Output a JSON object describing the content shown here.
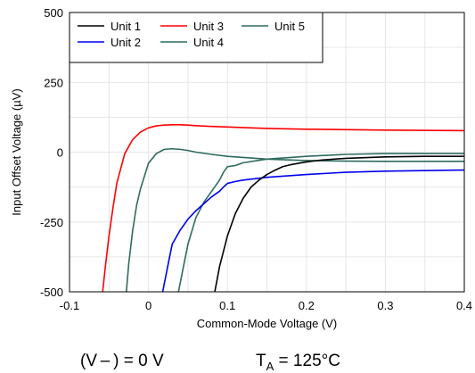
{
  "chart_data": {
    "type": "line",
    "title": "",
    "xlabel": "Common-Mode Voltage (V)",
    "ylabel": "Input Offset Voltage (µV)",
    "xlim": [
      -0.1,
      0.4
    ],
    "ylim": [
      -500,
      500
    ],
    "xticks": [
      "-0.1",
      "0",
      "0.1",
      "0.2",
      "0.3",
      "0.4"
    ],
    "yticks": [
      "500",
      "250",
      "0",
      "-250",
      "-500"
    ],
    "grid": true,
    "legend_position": "top-left",
    "series": [
      {
        "name": "Unit 1",
        "color": "#000000",
        "x": [
          0.084,
          0.09,
          0.1,
          0.11,
          0.12,
          0.13,
          0.14,
          0.15,
          0.16,
          0.17,
          0.18,
          0.2,
          0.22,
          0.25,
          0.3,
          0.35,
          0.4
        ],
        "y": [
          -500,
          -410,
          -300,
          -220,
          -165,
          -125,
          -100,
          -80,
          -65,
          -52,
          -45,
          -35,
          -28,
          -22,
          -17,
          -15,
          -15
        ]
      },
      {
        "name": "Unit 2",
        "color": "#0000ee",
        "x": [
          0.018,
          0.025,
          0.03,
          0.04,
          0.05,
          0.06,
          0.07,
          0.08,
          0.09,
          0.095,
          0.1,
          0.11,
          0.12,
          0.15,
          0.2,
          0.25,
          0.3,
          0.4
        ],
        "y": [
          -500,
          -400,
          -330,
          -280,
          -240,
          -210,
          -185,
          -160,
          -140,
          -125,
          -112,
          -105,
          -100,
          -90,
          -80,
          -72,
          -68,
          -64
        ]
      },
      {
        "name": "Unit 3",
        "color": "#ff0000",
        "x": [
          -0.058,
          -0.055,
          -0.05,
          -0.045,
          -0.04,
          -0.03,
          -0.02,
          -0.01,
          0.0,
          0.01,
          0.02,
          0.03,
          0.04,
          0.05,
          0.06,
          0.08,
          0.1,
          0.15,
          0.2,
          0.3,
          0.4
        ],
        "y": [
          -500,
          -420,
          -300,
          -200,
          -110,
          -5,
          45,
          72,
          87,
          94,
          97,
          98,
          98,
          97,
          95,
          92,
          90,
          85,
          82,
          79,
          77
        ]
      },
      {
        "name": "Unit 4",
        "color": "#2e6b5e",
        "x": [
          0.038,
          0.045,
          0.05,
          0.06,
          0.07,
          0.08,
          0.09,
          0.095,
          0.1,
          0.11,
          0.12,
          0.15,
          0.2,
          0.25,
          0.3,
          0.4
        ],
        "y": [
          -500,
          -400,
          -330,
          -235,
          -180,
          -140,
          -100,
          -72,
          -52,
          -48,
          -38,
          -25,
          -15,
          -8,
          -5,
          -5
        ]
      },
      {
        "name": "Unit 5",
        "color": "#2e6b5e",
        "x": [
          -0.028,
          -0.025,
          -0.02,
          -0.015,
          -0.01,
          -0.005,
          0.0,
          0.01,
          0.02,
          0.03,
          0.04,
          0.05,
          0.06,
          0.08,
          0.1,
          0.15,
          0.2,
          0.25,
          0.3,
          0.4
        ],
        "y": [
          -500,
          -400,
          -280,
          -190,
          -130,
          -85,
          -40,
          -5,
          10,
          12,
          10,
          6,
          0,
          -8,
          -15,
          -25,
          -30,
          -32,
          -33,
          -33
        ]
      }
    ]
  },
  "conditions": {
    "supply_label": "(V – ) = 0 V",
    "temp_symbol": "T",
    "temp_subscript": "A",
    "temp_value": " = 125°C"
  }
}
